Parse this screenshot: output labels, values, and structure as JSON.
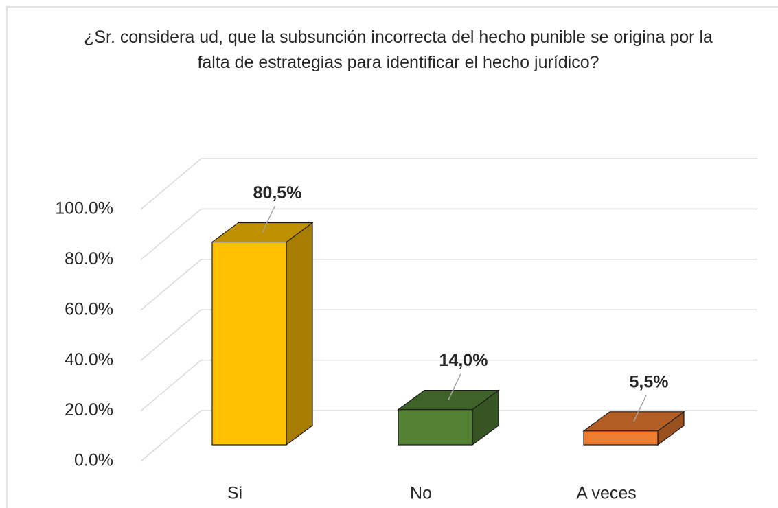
{
  "chart_data": {
    "type": "bar3d",
    "title": "¿Sr. considera ud, que la subsunción incorrecta del hecho punible se origina por la falta de estrategias para identificar el hecho jurídico?",
    "categories": [
      "Si",
      "No",
      "A veces"
    ],
    "values": [
      80.5,
      14.0,
      5.5
    ],
    "value_labels": [
      "80,5%",
      "14,0%",
      "5,5%"
    ],
    "colors": [
      "#ffc000",
      "#548235",
      "#ed7d31"
    ],
    "ylim": [
      0,
      100
    ],
    "yticks": [
      {
        "value": 0,
        "label": "0.0%"
      },
      {
        "value": 20,
        "label": "20.0%"
      },
      {
        "value": 40,
        "label": "40.0%"
      },
      {
        "value": 60,
        "label": "60.0%"
      },
      {
        "value": 80,
        "label": "80.0%"
      },
      {
        "value": 100,
        "label": "100.0%"
      }
    ],
    "grid": true
  }
}
